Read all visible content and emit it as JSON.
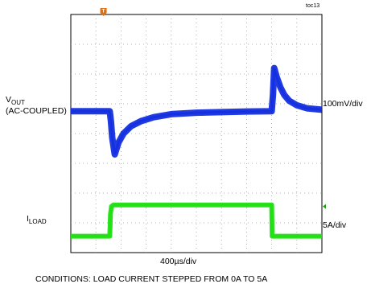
{
  "chart_data": {
    "type": "line",
    "figure_id": "toc13",
    "time_scale": "400µs/div",
    "conditions": "CONDITIONS: LOAD CURRENT STEPPED  FROM 0A TO 5A",
    "trigger_marker": "T",
    "grid": true,
    "divisions": {
      "x": 10,
      "y": 8
    },
    "series": [
      {
        "name": "VOUT (AC-COUPLED)",
        "label_main": "V",
        "label_sub": "OUT",
        "label_line2": "(AC-COUPLED)",
        "scale": "100mV/div",
        "color": "#1530e0",
        "x_div": [
          0,
          1.55,
          1.6,
          1.65,
          1.75,
          1.9,
          2.1,
          2.4,
          2.8,
          3.3,
          4,
          5,
          6,
          7,
          8,
          8.0,
          8.05,
          8.1,
          8.2,
          8.35,
          8.5,
          8.7,
          9.0,
          9.4,
          10
        ],
        "y_div": [
          4.75,
          4.75,
          4.4,
          3.85,
          3.3,
          3.7,
          4.0,
          4.25,
          4.42,
          4.55,
          4.65,
          4.7,
          4.72,
          4.74,
          4.75,
          4.75,
          5.3,
          6.2,
          5.9,
          5.55,
          5.3,
          5.1,
          4.95,
          4.85,
          4.8
        ]
      },
      {
        "name": "ILOAD",
        "label_main": "I",
        "label_sub": "LOAD",
        "scale": "5A/div",
        "color": "#22e014",
        "x_div": [
          0,
          1.55,
          1.58,
          1.62,
          1.7,
          8.0,
          8.02,
          10
        ],
        "y_div": [
          0.55,
          0.55,
          1.3,
          1.55,
          1.6,
          1.6,
          0.55,
          0.55
        ]
      }
    ],
    "markers": [
      {
        "name": "trigger",
        "color": "#e07010"
      },
      {
        "name": "ground-ref",
        "color": "#22a014"
      }
    ]
  }
}
